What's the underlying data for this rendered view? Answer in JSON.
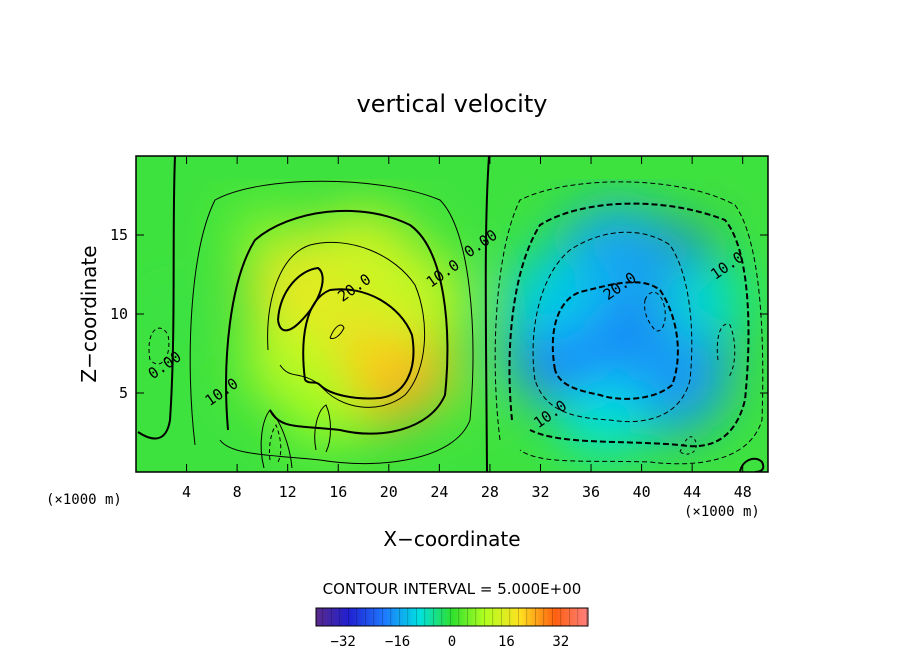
{
  "chart_data": {
    "type": "heatmap",
    "title": "vertical velocity",
    "xlabel": "X−coordinate",
    "ylabel": "Z−coordinate",
    "x_unit_left": "(×1000 m)",
    "x_unit_right": "(×1000 m)",
    "xlim": [
      0,
      50
    ],
    "ylim": [
      0,
      20
    ],
    "x_ticks": [
      4,
      8,
      12,
      16,
      20,
      24,
      28,
      32,
      36,
      40,
      44,
      48
    ],
    "y_ticks": [
      5,
      10,
      15
    ],
    "contour_interval_text": "CONTOUR INTERVAL = 5.000E+00",
    "colorbar": {
      "range": [
        -40,
        40
      ],
      "ticks": [
        -32,
        -16,
        0,
        16,
        32
      ],
      "tick_labels": [
        "−32",
        "−16",
        "0",
        "16",
        "32"
      ]
    },
    "contour_labels": [
      {
        "text": "20.0",
        "x": 17.5,
        "y": 11.4
      },
      {
        "text": "10.0",
        "x": 24.5,
        "y": 12.3
      },
      {
        "text": "0.00",
        "x": 27.5,
        "y": 14.2
      },
      {
        "text": "0.00",
        "x": 2.5,
        "y": 6.5
      },
      {
        "text": "10.0",
        "x": 7.0,
        "y": 4.8
      },
      {
        "text": "20.0",
        "x": 38.5,
        "y": 11.5
      },
      {
        "text": "10.0",
        "x": 47.0,
        "y": 12.8
      },
      {
        "text": "10.0",
        "x": 33.0,
        "y": 3.4
      }
    ],
    "cells": [
      {
        "x": 18.5,
        "y": 7.5,
        "value": 24
      },
      {
        "x": 17,
        "y": 9.5,
        "value": 22
      },
      {
        "x": 14,
        "y": 11.5,
        "value": 18
      },
      {
        "x": 12.5,
        "y": 7,
        "value": 12
      },
      {
        "x": 18,
        "y": 13.5,
        "value": 14
      },
      {
        "x": 10,
        "y": 15,
        "value": 6
      },
      {
        "x": 22,
        "y": 11,
        "value": 13
      },
      {
        "x": 15,
        "y": 4,
        "value": 9
      },
      {
        "x": 38,
        "y": 9.5,
        "value": -24
      },
      {
        "x": 40.5,
        "y": 10.5,
        "value": -28
      },
      {
        "x": 35,
        "y": 8,
        "value": -20
      },
      {
        "x": 38,
        "y": 13.5,
        "value": -16
      },
      {
        "x": 42,
        "y": 6,
        "value": -17
      },
      {
        "x": 33,
        "y": 11,
        "value": -12
      },
      {
        "x": 45,
        "y": 11,
        "value": -9
      },
      {
        "x": 37,
        "y": 3.5,
        "value": -10
      },
      {
        "x": 3,
        "y": 10,
        "value": -1
      },
      {
        "x": 26.5,
        "y": 5,
        "value": 2
      }
    ]
  }
}
